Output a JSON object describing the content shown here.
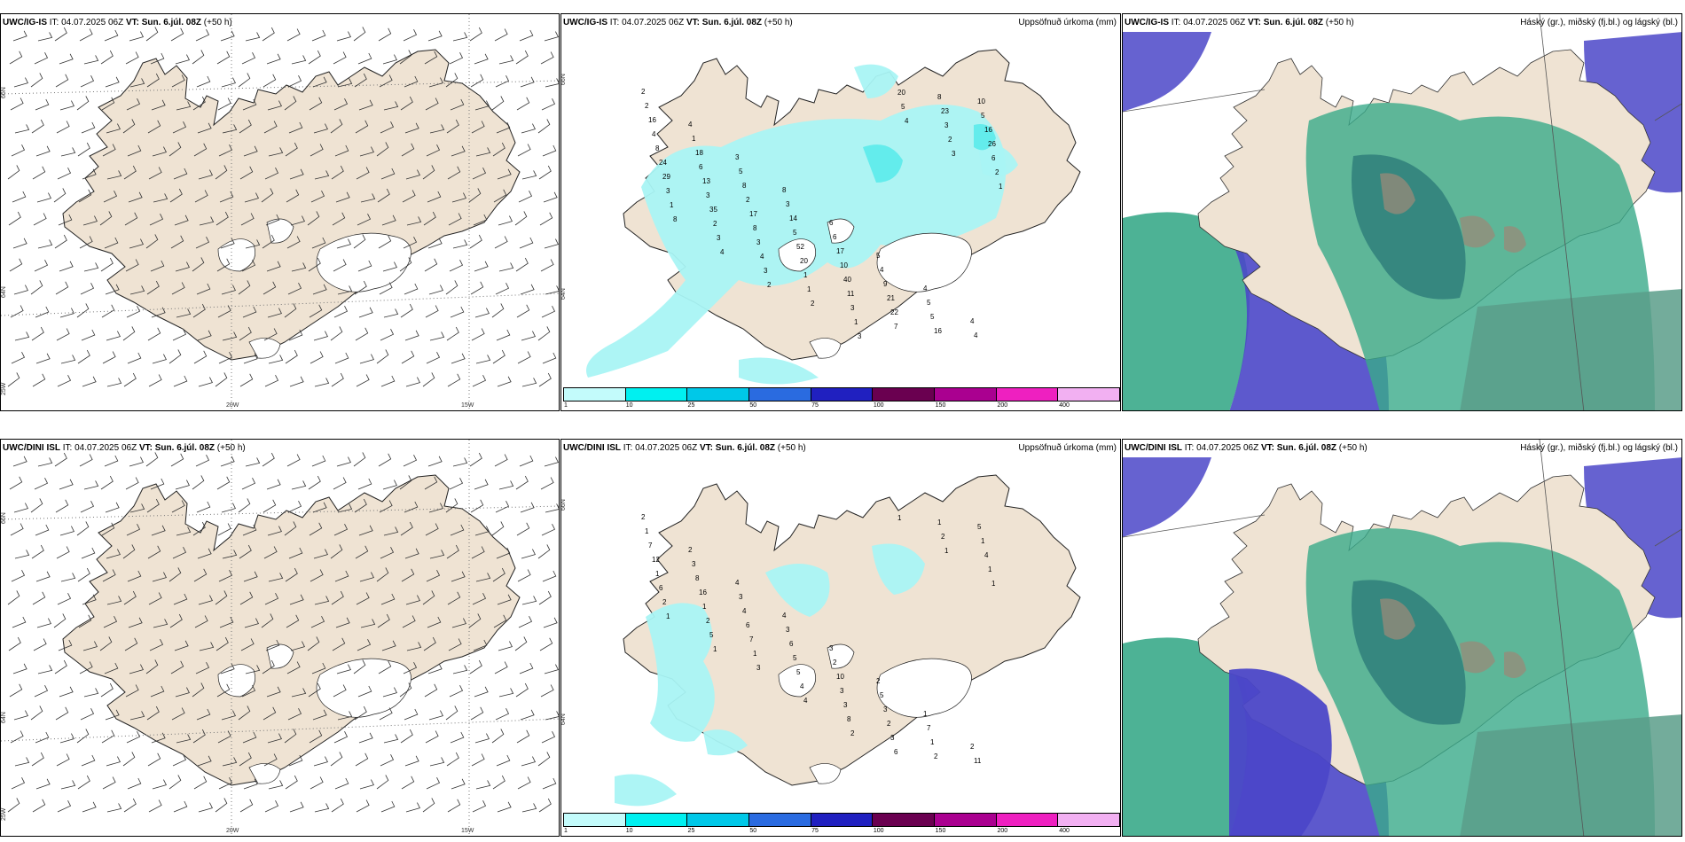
{
  "colors": {
    "land": "#efe3d3",
    "precip_light": "#a9f4f4",
    "precip_mid": "#63ecec",
    "cloud_high": "#9a8a78",
    "cloud_mid": "#3aaa8a",
    "cloud_low": "#4b47c8",
    "sea_cloud": "#5a9d8a"
  },
  "legend": {
    "ticks": [
      "1",
      "10",
      "25",
      "50",
      "75",
      "100",
      "150",
      "200",
      "400"
    ],
    "colors": [
      "#c3fbfb",
      "#00f0f0",
      "#00c8e8",
      "#2a6be0",
      "#2020c0",
      "#6a0050",
      "#aa0090",
      "#ee20c0",
      "#f2b0f2"
    ]
  },
  "axes": {
    "lon_20": "20W",
    "lon_15": "15W",
    "lat_66": "66N",
    "lat_64": "64N",
    "lon_25": "25W"
  },
  "rows": [
    {
      "model_name": "UWC/IG-IS",
      "it_label": "IT:",
      "it_value": "04.07.2025 06Z",
      "vt_label": "VT:",
      "vt_value": "Sun. 6.júl. 08Z",
      "lead": "(+50 h)",
      "precip_title": "Uppsöfnuð úrkoma (mm)",
      "cloud_title": "Háský (gr.), miðský (fj.bl.) og lágský (bl.)",
      "precip_numbers": [
        "2",
        "4",
        "3",
        "8",
        "6",
        "5",
        "4",
        "4",
        "2",
        "1",
        "5",
        "3",
        "6",
        "4",
        "5",
        "4",
        "16",
        "18",
        "8",
        "14",
        "17",
        "9",
        "5",
        "10",
        "4",
        "6",
        "2",
        "5",
        "10",
        "21",
        "16",
        "5",
        "8",
        "13",
        "17",
        "52",
        "40",
        "22",
        "8",
        "16",
        "24",
        "3",
        "8",
        "20",
        "11",
        "7",
        "23",
        "26",
        "29",
        "35",
        "3",
        "1",
        "3",
        "20",
        "3",
        "6",
        "3",
        "2",
        "4",
        "1",
        "1",
        "5",
        "2",
        "2",
        "1",
        "3",
        "3",
        "2",
        "3",
        "4",
        "3",
        "1",
        "8",
        "4",
        "2"
      ]
    },
    {
      "model_name": "UWC/DINI ISL",
      "it_label": "IT:",
      "it_value": "04.07.2025 06Z",
      "vt_label": "VT:",
      "vt_value": "Sun. 6.júl. 08Z",
      "lead": "(+50 h)",
      "precip_title": "Uppsöfnuð úrkoma (mm)",
      "cloud_title": "Háský (gr.), miðský (fj.bl.) og lágský (bl.)",
      "precip_numbers": [
        "2",
        "2",
        "4",
        "4",
        "3",
        "2",
        "1",
        "2",
        "1",
        "3",
        "3",
        "3",
        "2",
        "5",
        "7",
        "11",
        "7",
        "8",
        "4",
        "6",
        "10",
        "3",
        "1",
        "5",
        "12",
        "16",
        "6",
        "5",
        "3",
        "2",
        "2",
        "1",
        "1",
        "1",
        "7",
        "5",
        "3",
        "3",
        "1",
        "4",
        "6",
        "2",
        "1",
        "4",
        "8",
        "6",
        "2",
        "1",
        "2",
        "5",
        "3",
        "4",
        "2",
        "1",
        "1",
        "1",
        "1",
        "1"
      ]
    }
  ]
}
